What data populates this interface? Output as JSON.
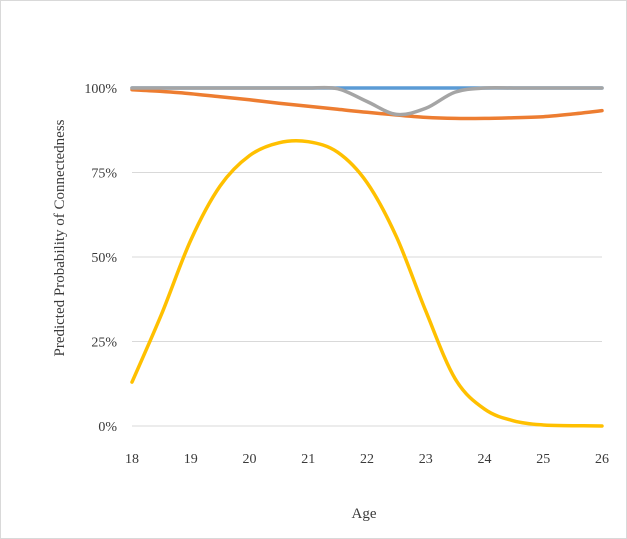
{
  "chart_data": {
    "type": "line",
    "title": "",
    "xlabel": "Age",
    "ylabel": "Predicted Probability of Connectedness",
    "xlim": [
      18,
      26
    ],
    "ylim": [
      0,
      100
    ],
    "x_ticks": [
      "18",
      "19",
      "20",
      "21",
      "22",
      "23",
      "24",
      "25",
      "26"
    ],
    "y_ticks": [
      {
        "value": 0,
        "label": "0%"
      },
      {
        "value": 25,
        "label": "25%"
      },
      {
        "value": 50,
        "label": "50%"
      },
      {
        "value": 75,
        "label": "75%"
      },
      {
        "value": 100,
        "label": "100%"
      }
    ],
    "grid": "horizontal",
    "legend": "none",
    "x": [
      18,
      18.5,
      19,
      19.5,
      20,
      20.5,
      21,
      21.5,
      22,
      22.5,
      23,
      23.5,
      24,
      24.5,
      25,
      25.5,
      26
    ],
    "series": [
      {
        "color": "#5b9bd5",
        "values": [
          100,
          100,
          100,
          100,
          100,
          100,
          100,
          100,
          100,
          100,
          100,
          100,
          100,
          100,
          100,
          100,
          100
        ]
      },
      {
        "color": "#ed7d31",
        "values": [
          99.5,
          99,
          98.3,
          97.4,
          96.5,
          95.5,
          94.6,
          93.7,
          92.8,
          92.0,
          91.3,
          91.0,
          91.0,
          91.2,
          91.5,
          92.3,
          93.3
        ]
      },
      {
        "color": "#ffc000",
        "values": [
          13,
          33,
          55,
          71,
          80,
          83.8,
          84.1,
          81,
          72,
          56,
          34,
          14,
          5,
          1.5,
          0.3,
          0.1,
          0
        ]
      },
      {
        "color": "#a5a5a5",
        "values": [
          100,
          100,
          100,
          100,
          100,
          100,
          100,
          99.8,
          96,
          92.2,
          94,
          98.8,
          100,
          100,
          100,
          100,
          100
        ]
      }
    ]
  }
}
